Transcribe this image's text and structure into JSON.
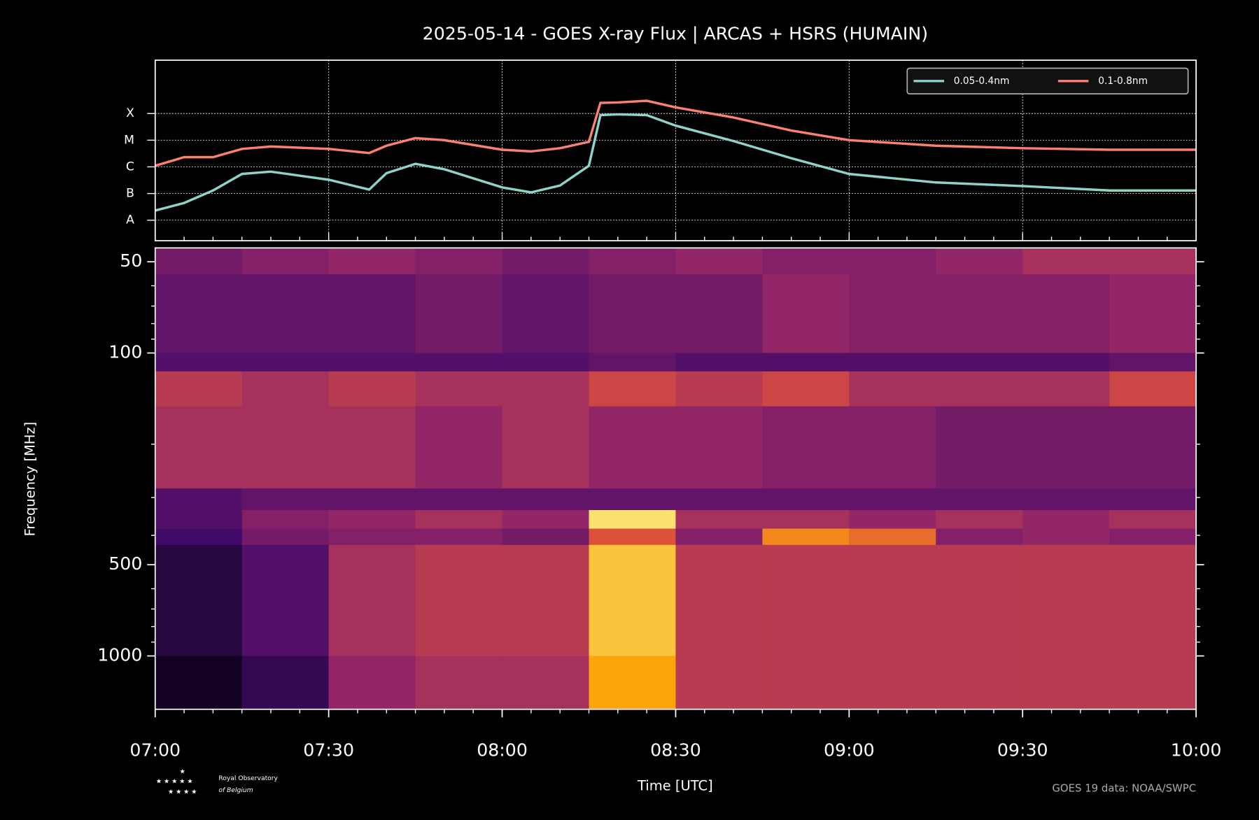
{
  "chart_data": [
    {
      "type": "line",
      "title": "2025-05-14 - GOES X-ray Flux | ARCAS + HSRS (HUMAIN)",
      "x": [
        "07:00",
        "07:05",
        "07:10",
        "07:15",
        "07:20",
        "07:30",
        "07:37",
        "07:40",
        "07:45",
        "07:50",
        "08:00",
        "08:05",
        "08:10",
        "08:15",
        "08:17",
        "08:20",
        "08:25",
        "08:30",
        "08:40",
        "08:50",
        "09:00",
        "09:15",
        "09:30",
        "09:45",
        "10:00"
      ],
      "series": [
        {
          "name": "0.05-0.4nm",
          "color": "#8dd3c7",
          "values": [
            2.3e-08,
            4.4e-08,
            1.3e-07,
            5.4e-07,
            6.6e-07,
            3.3e-07,
            1.4e-07,
            5.8e-07,
            1.3e-06,
            8.1e-07,
            1.7e-07,
            1.1e-07,
            2e-07,
            1.1e-06,
            8.7e-05,
            9.3e-05,
            8.7e-05,
            3.5e-05,
            9.3e-06,
            2.1e-06,
            5.4e-07,
            2.6e-07,
            1.9e-07,
            1.3e-07,
            1.3e-07
          ]
        },
        {
          "name": "0.1-0.8nm",
          "color": "#fa8072",
          "values": [
            1.1e-06,
            2.3e-06,
            2.3e-06,
            4.7e-06,
            5.8e-06,
            4.7e-06,
            3.3e-06,
            6.2e-06,
            1.2e-05,
            1e-05,
            4.4e-06,
            3.8e-06,
            5e-06,
            8.7e-06,
            0.00025,
            0.00026,
            0.0003,
            0.00017,
            7.1e-05,
            2.3e-05,
            1e-05,
            6.2e-06,
            5e-06,
            4.4e-06,
            4.4e-06
          ]
        }
      ],
      "log_scale": true,
      "ylim": [
        1.7e-09,
        0.01
      ],
      "yticks": [
        {
          "value": 1e-08,
          "label": "A"
        },
        {
          "value": 1e-07,
          "label": "B"
        },
        {
          "value": 1e-06,
          "label": "C"
        },
        {
          "value": 1e-05,
          "label": "M"
        },
        {
          "value": 0.0001,
          "label": "X"
        }
      ],
      "grid": true,
      "legend": "upper right"
    },
    {
      "type": "heatmap",
      "xlabel": "Time [UTC]",
      "ylabel": "Frequency [MHz]",
      "xlim": [
        "07:00",
        "10:00"
      ],
      "xticks": [
        "07:00",
        "07:30",
        "08:00",
        "08:30",
        "09:00",
        "09:30",
        "10:00"
      ],
      "x_edges": [
        "07:00",
        "07:15",
        "07:30",
        "07:45",
        "08:00",
        "08:15",
        "08:30",
        "08:45",
        "09:00",
        "09:15",
        "09:30",
        "09:45",
        "10:00"
      ],
      "log_scale": true,
      "yinvert": true,
      "ylim": [
        45,
        1500
      ],
      "yticks": [
        50,
        100,
        500,
        1000
      ],
      "yminor": [
        60,
        70,
        80,
        90,
        200,
        300,
        400,
        600,
        700,
        800,
        900
      ],
      "y_edges": [
        45,
        55,
        100,
        115,
        150,
        280,
        330,
        380,
        430,
        1000,
        1500
      ],
      "intensity": [
        [
          0.4,
          0.45,
          0.5,
          0.45,
          0.4,
          0.45,
          0.5,
          0.45,
          0.45,
          0.5,
          0.55,
          0.55
        ],
        [
          0.35,
          0.35,
          0.35,
          0.4,
          0.35,
          0.4,
          0.4,
          0.5,
          0.45,
          0.45,
          0.45,
          0.5
        ],
        [
          0.3,
          0.3,
          0.3,
          0.3,
          0.3,
          0.35,
          0.3,
          0.3,
          0.3,
          0.3,
          0.3,
          0.35
        ],
        [
          0.6,
          0.55,
          0.6,
          0.55,
          0.55,
          0.65,
          0.6,
          0.65,
          0.55,
          0.55,
          0.55,
          0.65
        ],
        [
          0.55,
          0.55,
          0.55,
          0.5,
          0.55,
          0.5,
          0.5,
          0.45,
          0.45,
          0.4,
          0.4,
          0.4
        ],
        [
          0.3,
          0.35,
          0.35,
          0.35,
          0.35,
          0.35,
          0.35,
          0.35,
          0.35,
          0.35,
          0.35,
          0.35
        ],
        [
          0.3,
          0.45,
          0.5,
          0.55,
          0.5,
          0.95,
          0.55,
          0.55,
          0.5,
          0.55,
          0.5,
          0.55
        ],
        [
          0.25,
          0.4,
          0.45,
          0.45,
          0.4,
          0.7,
          0.45,
          0.8,
          0.75,
          0.45,
          0.5,
          0.45
        ],
        [
          0.15,
          0.3,
          0.55,
          0.6,
          0.6,
          0.9,
          0.6,
          0.6,
          0.6,
          0.6,
          0.6,
          0.6
        ],
        [
          0.08,
          0.2,
          0.5,
          0.55,
          0.55,
          0.85,
          0.6,
          0.6,
          0.6,
          0.6,
          0.6,
          0.6
        ]
      ]
    }
  ],
  "credits": {
    "source": "GOES 19 data: NOAA/SWPC",
    "logo": [
      "Royal Observatory",
      "of Belgium"
    ]
  }
}
